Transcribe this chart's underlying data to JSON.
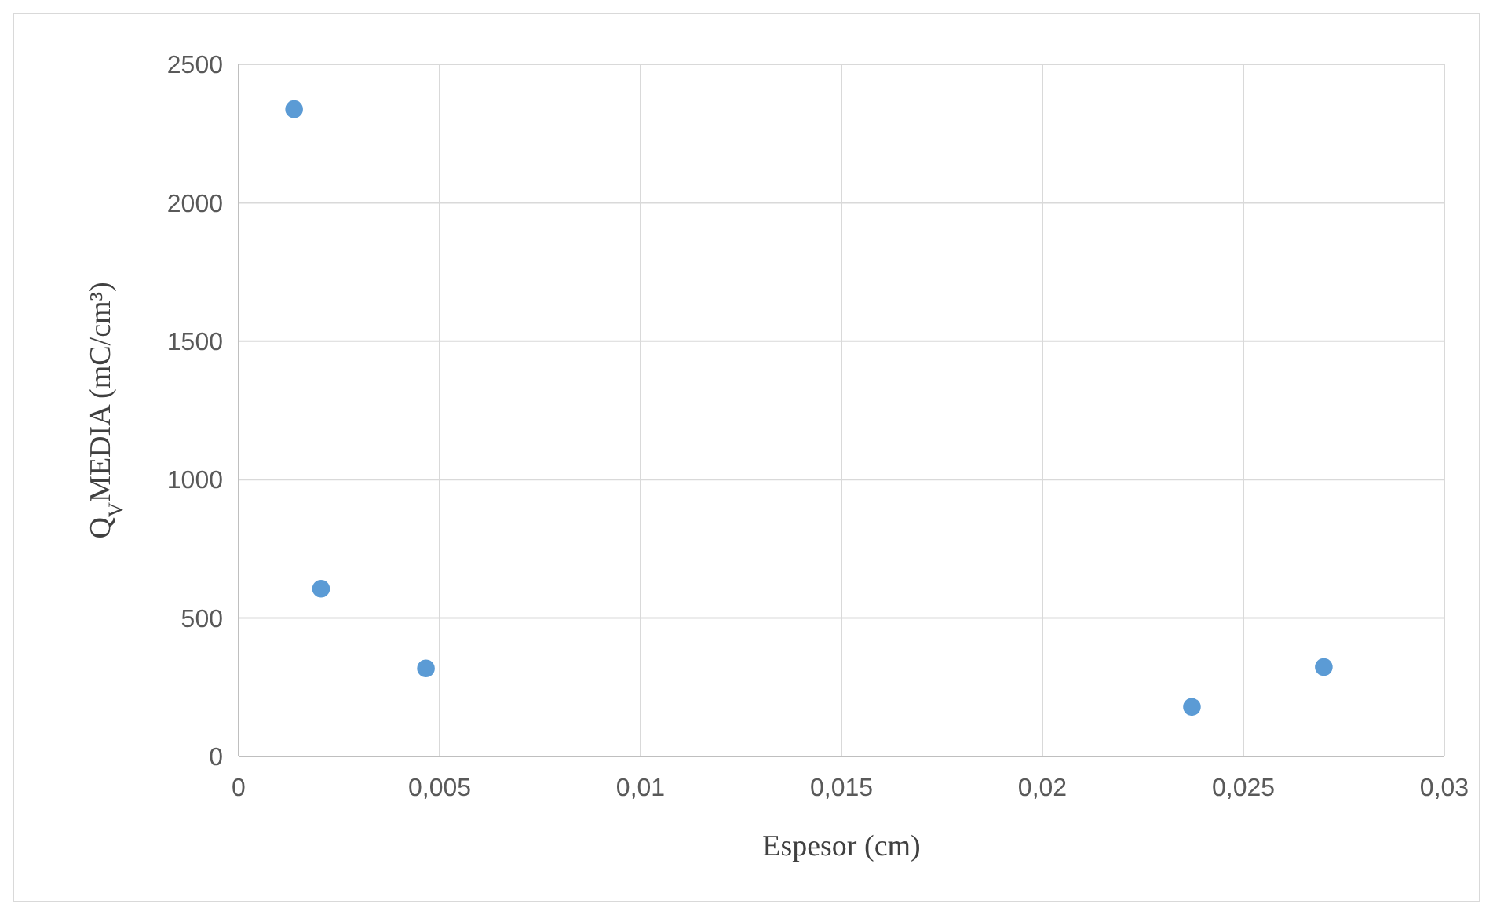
{
  "chart_data": {
    "type": "scatter",
    "xlabel": "Espesor (cm)",
    "ylabel": "Q$_{V}$MEDIA (mC/cm³)",
    "x": [
      0.00138,
      0.00205,
      0.00466,
      0.02372,
      0.027
    ],
    "series": [
      {
        "color": "#5b9bd5",
        "values": [
          2338,
          606,
          318,
          179,
          323
        ]
      }
    ],
    "xlim": [
      0,
      0.03
    ],
    "xticks": [
      0,
      {
        "value": 0.005,
        "label": "0,005"
      },
      {
        "value": 0.01,
        "label": "0,01"
      },
      {
        "value": 0.015,
        "label": "0,015"
      },
      {
        "value": 0.02,
        "label": "0,02"
      },
      {
        "value": 0.025,
        "label": "0,025"
      },
      {
        "value": 0.03,
        "label": "0,03"
      }
    ],
    "ylim": [
      0,
      2500
    ],
    "yticks": [
      0,
      500,
      1000,
      1500,
      2000,
      2500
    ],
    "grid": true,
    "marker": "circle"
  }
}
